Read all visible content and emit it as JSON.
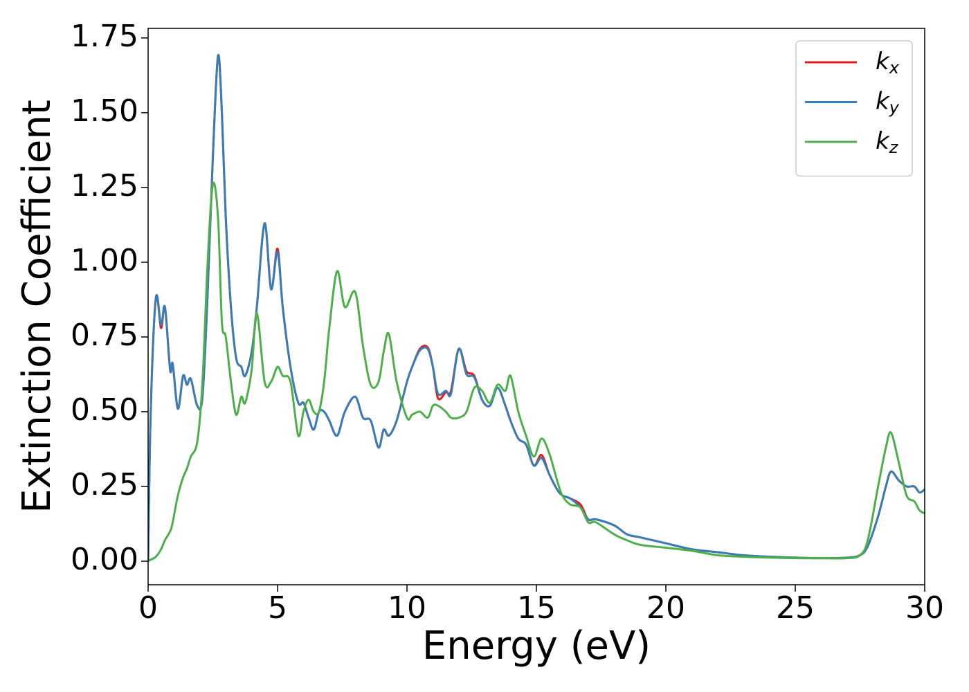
{
  "chart_data": {
    "type": "line",
    "xlabel": "Energy (eV)",
    "ylabel": "Extinction Coefficient",
    "x": [
      0,
      0.1,
      0.3,
      0.5,
      0.65,
      0.85,
      0.95,
      1.15,
      1.35,
      1.5,
      1.65,
      1.9,
      2.1,
      2.3,
      2.5,
      2.7,
      2.85,
      3.0,
      3.2,
      3.4,
      3.6,
      3.75,
      4.0,
      4.2,
      4.5,
      4.75,
      5.0,
      5.2,
      5.5,
      5.8,
      6.0,
      6.2,
      6.4,
      6.6,
      6.8,
      7.0,
      7.3,
      7.6,
      8.0,
      8.3,
      8.6,
      8.9,
      9.1,
      9.3,
      9.6,
      10.0,
      10.2,
      10.5,
      10.8,
      11.0,
      11.2,
      11.5,
      11.7,
      12.0,
      12.3,
      12.6,
      12.9,
      13.2,
      13.5,
      13.8,
      14.0,
      14.3,
      14.6,
      14.9,
      15.2,
      15.5,
      15.8,
      16.0,
      16.3,
      16.7,
      17.0,
      17.3,
      18.0,
      18.5,
      19.0,
      20.0,
      21.0,
      22.0,
      23.0,
      24.0,
      25,
      26,
      27,
      27.5,
      27.8,
      28.2,
      28.5,
      28.7,
      29.0,
      29.3,
      29.6,
      29.8,
      30
    ],
    "series": [
      {
        "name": "k_x",
        "color": "#e41a1c",
        "values": [
          0,
          0.5,
          0.88,
          0.78,
          0.85,
          0.64,
          0.66,
          0.51,
          0.62,
          0.59,
          0.61,
          0.52,
          0.55,
          0.9,
          1.35,
          1.69,
          1.5,
          1.15,
          0.85,
          0.68,
          0.65,
          0.62,
          0.7,
          0.85,
          1.13,
          0.91,
          1.045,
          0.85,
          0.65,
          0.53,
          0.53,
          0.48,
          0.44,
          0.5,
          0.5,
          0.47,
          0.42,
          0.5,
          0.55,
          0.48,
          0.47,
          0.38,
          0.44,
          0.42,
          0.47,
          0.6,
          0.65,
          0.71,
          0.715,
          0.65,
          0.545,
          0.565,
          0.57,
          0.71,
          0.635,
          0.62,
          0.54,
          0.52,
          0.58,
          0.52,
          0.47,
          0.41,
          0.39,
          0.32,
          0.355,
          0.29,
          0.24,
          0.22,
          0.21,
          0.19,
          0.14,
          0.14,
          0.12,
          0.09,
          0.08,
          0.06,
          0.04,
          0.03,
          0.02,
          0.015,
          0.012,
          0.01,
          0.012,
          0.02,
          0.05,
          0.15,
          0.25,
          0.3,
          0.27,
          0.25,
          0.25,
          0.23,
          0.24
        ]
      },
      {
        "name": "k_y",
        "color": "#377eb8",
        "values": [
          0,
          0.5,
          0.88,
          0.79,
          0.85,
          0.64,
          0.66,
          0.51,
          0.62,
          0.59,
          0.61,
          0.52,
          0.55,
          0.9,
          1.35,
          1.69,
          1.5,
          1.15,
          0.85,
          0.68,
          0.65,
          0.62,
          0.7,
          0.85,
          1.13,
          0.91,
          1.035,
          0.85,
          0.65,
          0.53,
          0.53,
          0.48,
          0.44,
          0.5,
          0.5,
          0.47,
          0.42,
          0.5,
          0.55,
          0.48,
          0.47,
          0.38,
          0.44,
          0.42,
          0.47,
          0.6,
          0.65,
          0.705,
          0.71,
          0.65,
          0.56,
          0.57,
          0.56,
          0.71,
          0.625,
          0.615,
          0.54,
          0.52,
          0.58,
          0.52,
          0.47,
          0.41,
          0.39,
          0.32,
          0.345,
          0.29,
          0.24,
          0.22,
          0.21,
          0.18,
          0.14,
          0.14,
          0.12,
          0.09,
          0.08,
          0.06,
          0.04,
          0.03,
          0.02,
          0.015,
          0.012,
          0.01,
          0.012,
          0.02,
          0.05,
          0.15,
          0.25,
          0.3,
          0.27,
          0.25,
          0.25,
          0.23,
          0.24
        ]
      },
      {
        "name": "k_z",
        "color": "#4daf4a",
        "values": [
          0,
          0.005,
          0.015,
          0.04,
          0.07,
          0.1,
          0.13,
          0.22,
          0.28,
          0.31,
          0.35,
          0.4,
          0.6,
          1.0,
          1.26,
          1.15,
          0.8,
          0.75,
          0.6,
          0.49,
          0.55,
          0.53,
          0.64,
          0.83,
          0.6,
          0.6,
          0.65,
          0.62,
          0.6,
          0.42,
          0.5,
          0.54,
          0.5,
          0.5,
          0.6,
          0.78,
          0.97,
          0.85,
          0.9,
          0.72,
          0.59,
          0.6,
          0.7,
          0.76,
          0.6,
          0.48,
          0.49,
          0.5,
          0.48,
          0.52,
          0.52,
          0.5,
          0.48,
          0.48,
          0.5,
          0.58,
          0.57,
          0.53,
          0.59,
          0.57,
          0.62,
          0.5,
          0.42,
          0.35,
          0.41,
          0.36,
          0.27,
          0.22,
          0.19,
          0.18,
          0.13,
          0.13,
          0.09,
          0.07,
          0.055,
          0.045,
          0.035,
          0.02,
          0.015,
          0.012,
          0.01,
          0.01,
          0.01,
          0.02,
          0.07,
          0.25,
          0.38,
          0.43,
          0.33,
          0.22,
          0.2,
          0.17,
          0.16
        ]
      }
    ],
    "xlim": [
      0,
      30
    ],
    "xticks": [
      0,
      5,
      10,
      15,
      20,
      25,
      30
    ],
    "ylim": [
      -0.0787,
      1.782
    ],
    "yticks": [
      {
        "value": 0,
        "label": "0.00"
      },
      {
        "value": 0.25,
        "label": "0.25"
      },
      {
        "value": 0.5,
        "label": "0.50"
      },
      {
        "value": 0.75,
        "label": "0.75"
      },
      {
        "value": 1,
        "label": "1.00"
      },
      {
        "value": 1.25,
        "label": "1.25"
      },
      {
        "value": 1.5,
        "label": "1.50"
      },
      {
        "value": 1.75,
        "label": "1.75"
      }
    ],
    "legend": "upper right"
  }
}
